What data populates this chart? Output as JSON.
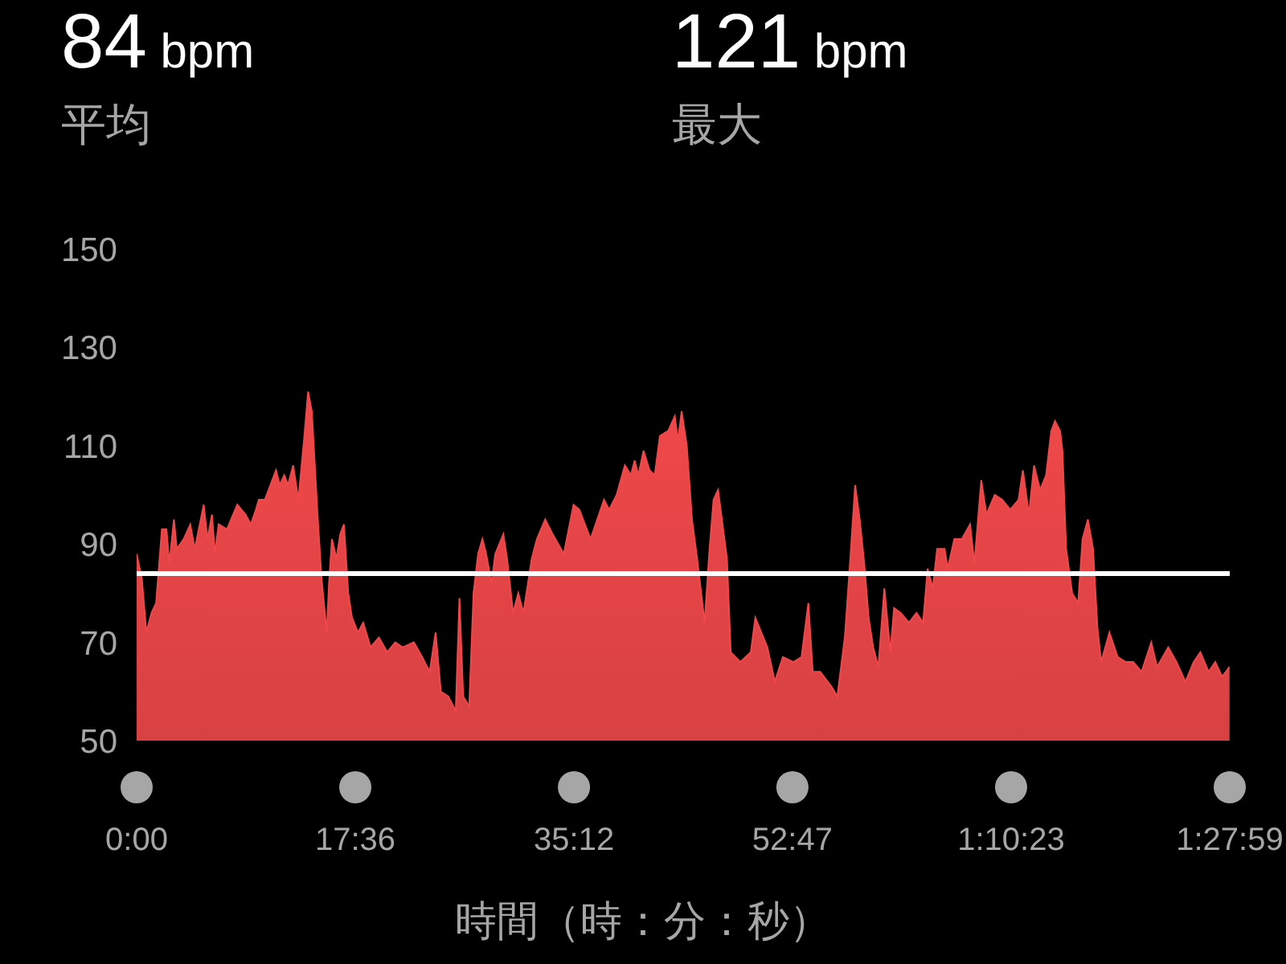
{
  "chart_data": {
    "type": "area",
    "xlabel": "時間（時：分：秒）",
    "annotations": [
      "84 bpm",
      "平均",
      "121 bpm",
      "最大"
    ],
    "color": "#f0484a",
    "x": [
      0,
      25,
      47,
      72,
      94,
      122,
      144,
      158,
      180,
      194,
      227,
      259,
      281,
      324,
      342,
      364,
      378,
      396,
      436,
      486,
      526,
      551,
      576,
      590,
      619,
      655,
      673,
      691,
      713,
      731,
      756,
      781,
      810,
      828,
      846,
      875,
      893,
      918,
      929,
      943,
      965,
      983,
      1001,
      1022,
      1040,
      1069,
      1094,
      1130,
      1170,
      1210,
      1249,
      1285,
      1339,
      1379,
      1415,
      1444,
      1469,
      1505,
      1541,
      1559,
      1577,
      1606,
      1627,
      1649,
      1670,
      1688,
      1714,
      1732,
      1771,
      1789,
      1818,
      1843,
      1868,
      1908,
      1933,
      1973,
      2009,
      2063,
      2110,
      2138,
      2192,
      2257,
      2282,
      2318,
      2358,
      2387,
      2405,
      2423,
      2448,
      2477,
      2502,
      2527,
      2567,
      2599,
      2614,
      2632,
      2657,
      2682,
      2707,
      2743,
      2765,
      2786,
      2808,
      2851,
      2869,
      2916,
      2966,
      2988,
      3046,
      3082,
      3121,
      3172,
      3211,
      3244,
      3265,
      3301,
      3355,
      3384,
      3420,
      3445,
      3470,
      3492,
      3514,
      3535,
      3557,
      3582,
      3611,
      3640,
      3658,
      3690,
      3730,
      3766,
      3798,
      3820,
      3845,
      3866,
      3902,
      3917,
      3949,
      3985,
      4025,
      4046,
      4079,
      4104,
      4144,
      4180,
      4219,
      4259,
      4280,
      4309,
      4334,
      4363,
      4392,
      4417,
      4435,
      4460,
      4471,
      4489,
      4518,
      4547,
      4568,
      4594,
      4619,
      4640,
      4658,
      4698,
      4738,
      4777,
      4813,
      4853,
      4900,
      4928,
      4982,
      5022,
      5065,
      5105,
      5137,
      5177,
      5209,
      5242,
      5278
    ],
    "values": [
      88,
      83,
      72,
      76,
      78,
      93,
      93,
      86,
      95,
      89,
      91,
      94,
      89,
      98,
      91,
      96,
      88,
      94,
      93,
      98,
      96,
      94,
      97,
      99,
      99,
      103,
      105,
      102,
      104,
      102,
      106,
      99,
      112,
      121,
      117,
      95,
      83,
      72,
      82,
      91,
      87,
      92,
      94,
      80,
      75,
      72,
      74,
      69,
      71,
      68,
      70,
      69,
      70,
      67,
      64,
      72,
      60,
      59,
      56,
      79,
      59,
      57,
      80,
      88,
      91,
      88,
      82,
      88,
      92,
      87,
      76,
      80,
      76,
      87,
      91,
      95,
      92,
      88,
      98,
      97,
      91,
      99,
      97,
      100,
      106,
      104,
      107,
      104,
      109,
      105,
      104,
      112,
      113,
      116,
      111,
      117,
      110,
      95,
      87,
      74,
      88,
      99,
      101,
      87,
      68,
      66,
      68,
      75,
      69,
      62,
      67,
      66,
      67,
      78,
      64,
      64,
      61,
      59,
      71,
      86,
      102,
      95,
      86,
      75,
      69,
      65,
      81,
      68,
      77,
      76,
      74,
      76,
      74,
      85,
      81,
      89,
      89,
      85,
      91,
      91,
      94,
      86,
      103,
      96,
      100,
      99,
      97,
      99,
      105,
      96,
      106,
      101,
      104,
      113,
      115,
      113,
      109,
      89,
      80,
      78,
      91,
      95,
      89,
      73,
      66,
      72,
      67,
      66,
      66,
      64,
      70,
      65,
      69,
      66,
      62,
      66,
      68,
      64,
      66,
      63,
      65
    ],
    "xlim": [
      0,
      5279
    ],
    "xticks": [
      {
        "value": 0,
        "label": "0:00"
      },
      {
        "value": 1056,
        "label": "17:36"
      },
      {
        "value": 2112,
        "label": "35:12"
      },
      {
        "value": 3167,
        "label": "52:47"
      },
      {
        "value": 4223,
        "label": "1:10:23"
      },
      {
        "value": 5279,
        "label": "1:27:59"
      }
    ],
    "ylim": [
      50,
      150
    ],
    "yticks": [
      50,
      70,
      90,
      110,
      130,
      150
    ],
    "ref_lines": [
      {
        "axis": "y",
        "value": 84,
        "color": "#ffffff"
      }
    ]
  }
}
